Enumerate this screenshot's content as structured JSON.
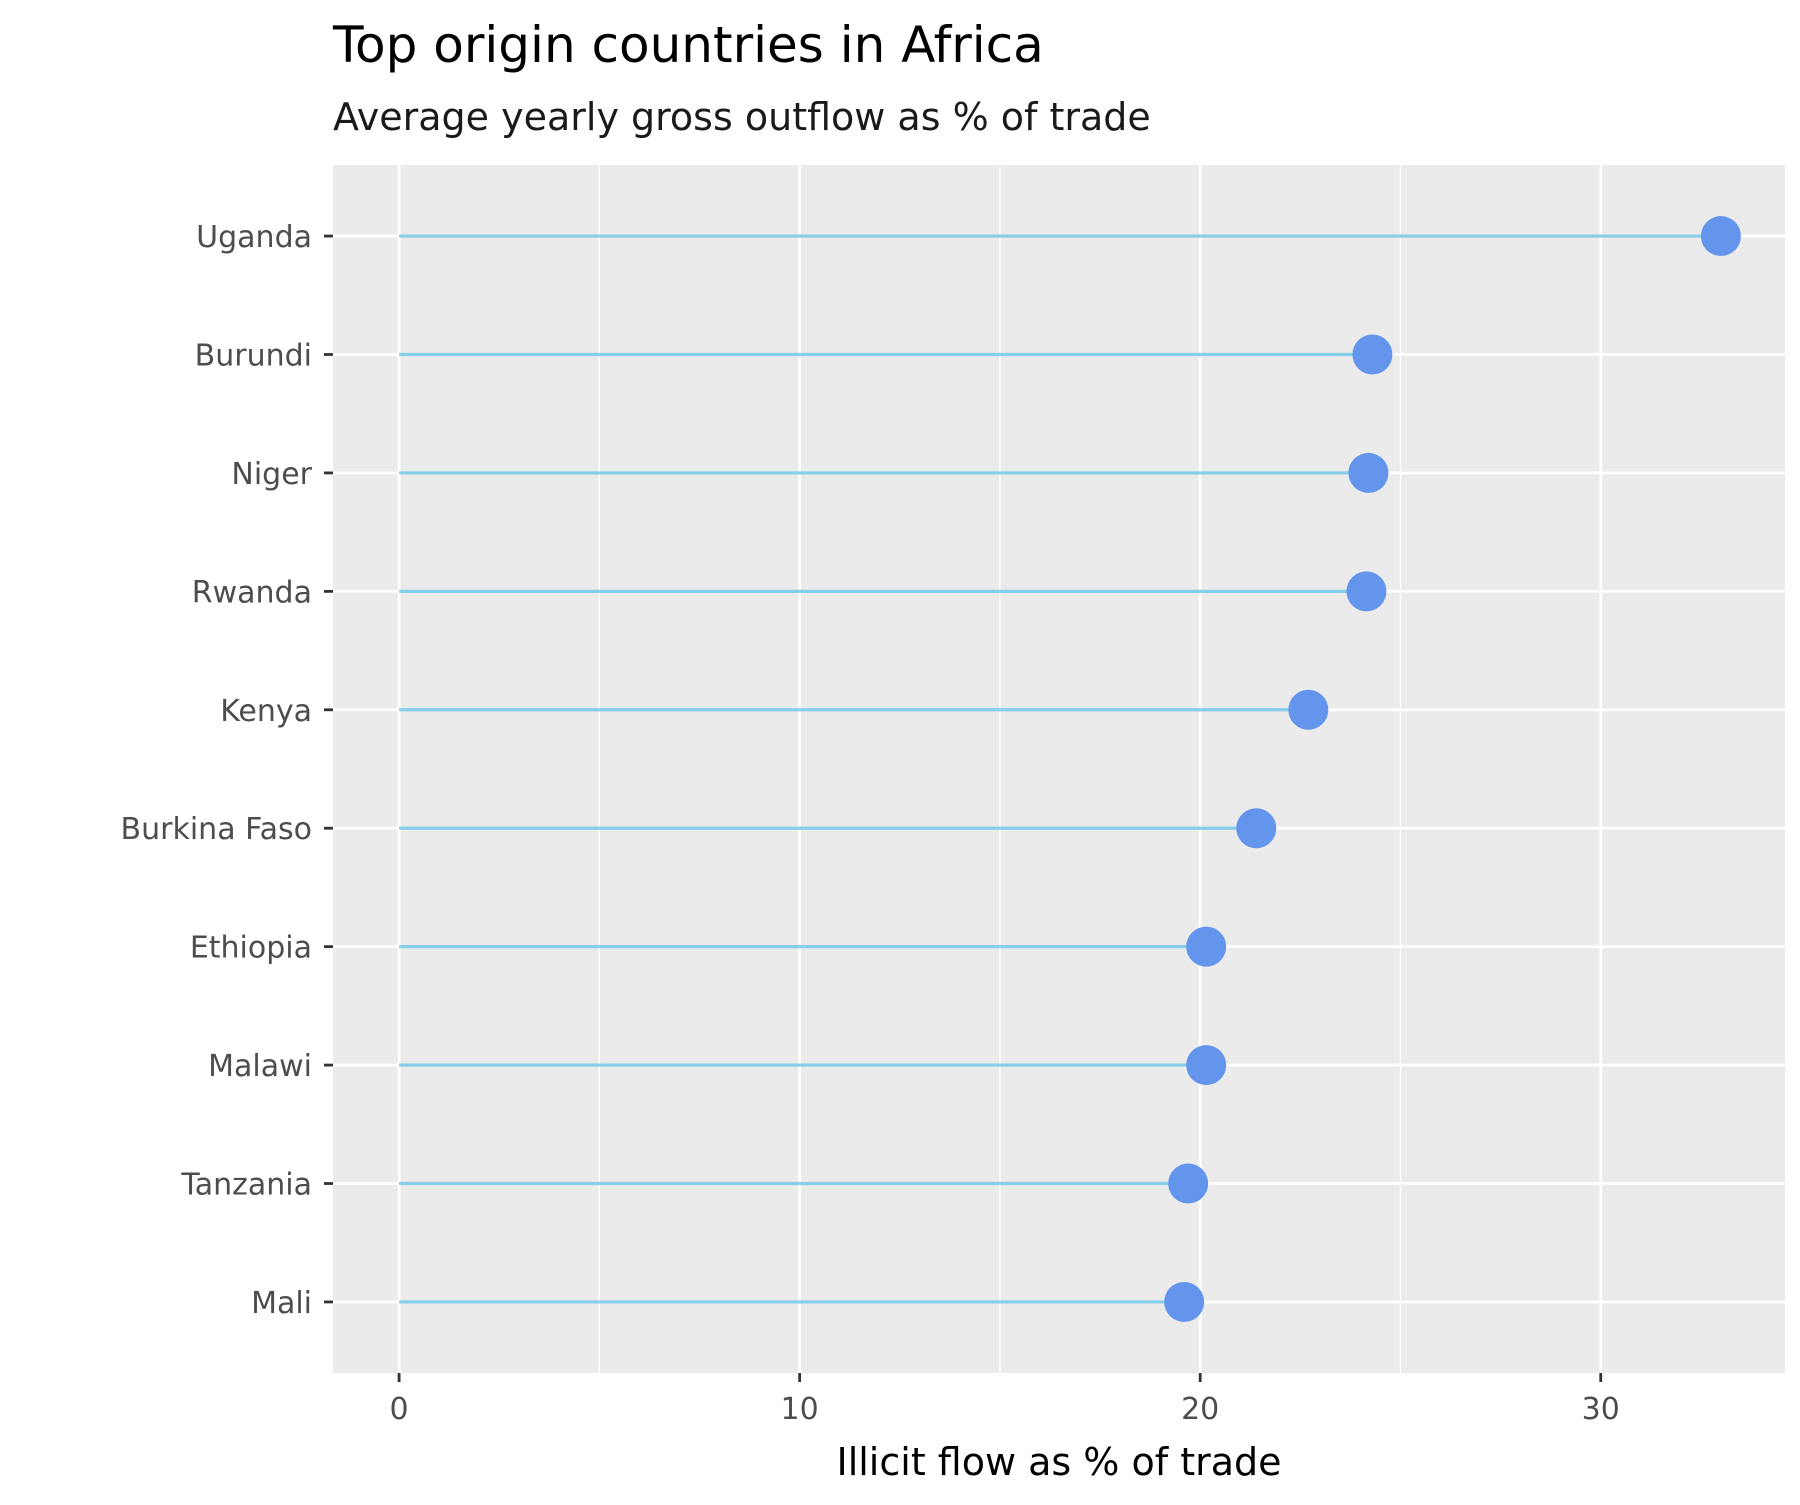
{
  "chart_data": {
    "type": "lollipop",
    "title": "Top origin countries in Africa",
    "subtitle": "Average yearly gross outflow as % of trade",
    "xlabel": "Illicit flow as % of trade",
    "ylabel": "",
    "xlim": [
      -1.65,
      34.6
    ],
    "x_ticks": [
      0,
      10,
      20,
      30
    ],
    "x_minor_ticks": [
      5,
      15,
      25
    ],
    "grid": true,
    "legend": "none",
    "categories": [
      "Uganda",
      "Burundi",
      "Niger",
      "Rwanda",
      "Kenya",
      "Burkina Faso",
      "Ethiopia",
      "Malawi",
      "Tanzania",
      "Mali"
    ],
    "values": [
      33.0,
      24.3,
      24.2,
      24.15,
      22.7,
      21.4,
      20.15,
      20.15,
      19.7,
      19.6
    ],
    "colors": {
      "panel": "#ebebeb",
      "grid": "#ffffff",
      "segment": "#87ceeb",
      "point": "#6495ed",
      "tick": "#333333"
    }
  }
}
